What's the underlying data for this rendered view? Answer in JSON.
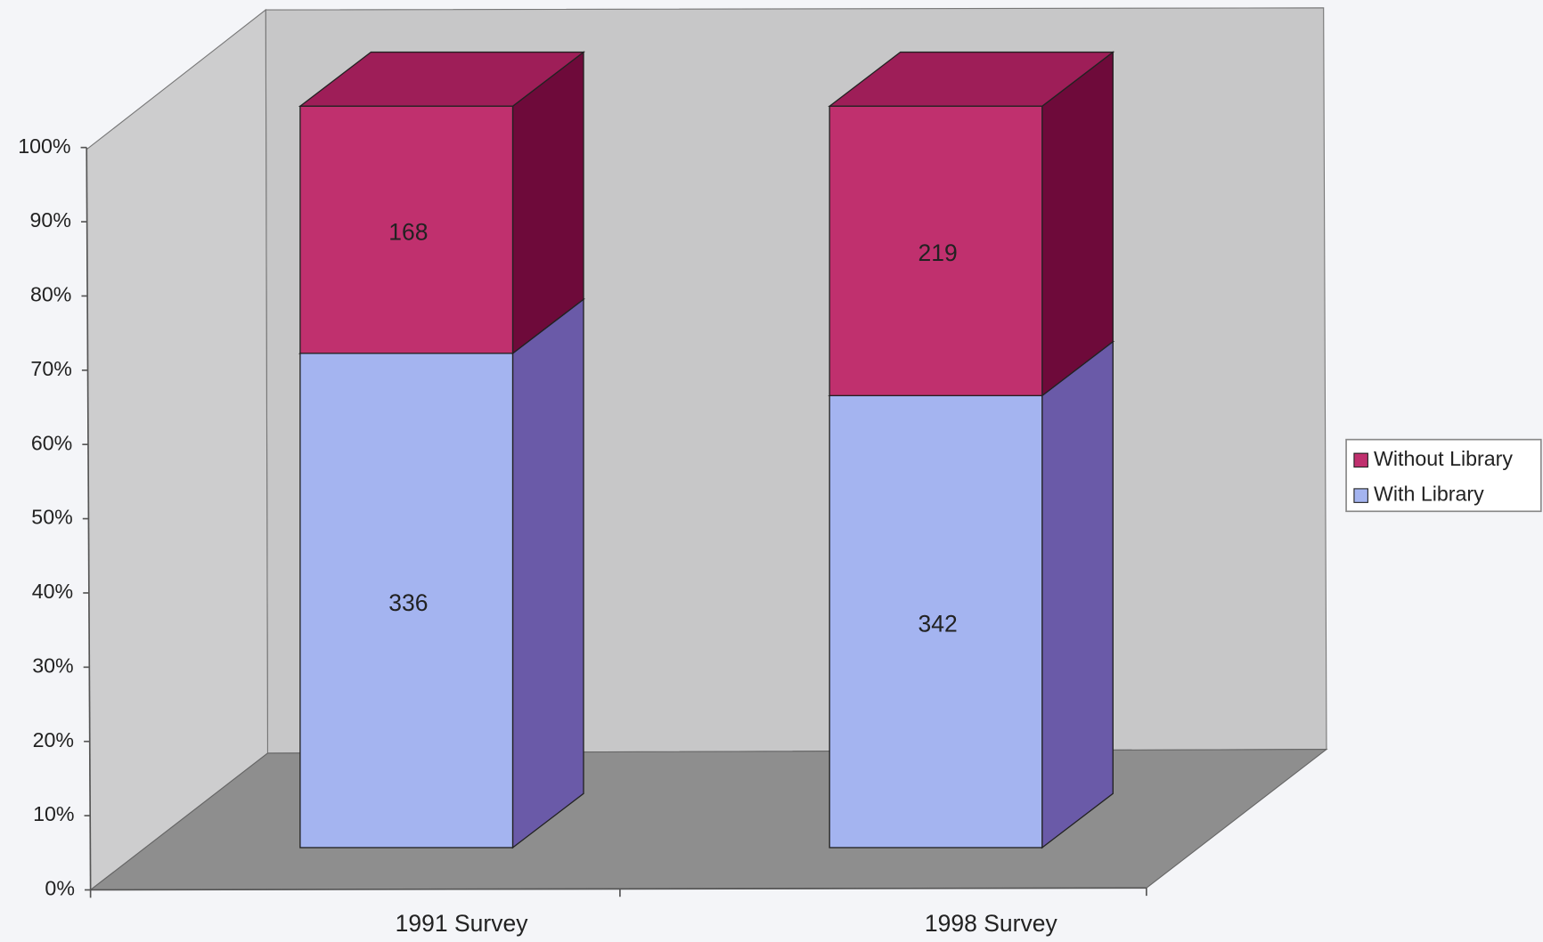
{
  "chart_data": {
    "type": "bar",
    "stacking": "percent",
    "categories": [
      "1991 Survey",
      "1998 Survey"
    ],
    "series": [
      {
        "name": "With Library",
        "color": "#a4b4f0",
        "side_color": "#6a5aa8",
        "top_color": "#8a90d8",
        "values": [
          336,
          342
        ]
      },
      {
        "name": "Without Library",
        "color": "#c0306e",
        "side_color": "#6e0a3a",
        "top_color": "#9e1e58",
        "values": [
          168,
          219
        ]
      }
    ],
    "ylim": [
      0,
      100
    ],
    "yticks": [
      {
        "value": 0,
        "label": "0%"
      },
      {
        "value": 10,
        "label": "10%"
      },
      {
        "value": 20,
        "label": "20%"
      },
      {
        "value": 30,
        "label": "30%"
      },
      {
        "value": 40,
        "label": "40%"
      },
      {
        "value": 50,
        "label": "50%"
      },
      {
        "value": 60,
        "label": "60%"
      },
      {
        "value": 70,
        "label": "70%"
      },
      {
        "value": 80,
        "label": "80%"
      },
      {
        "value": 90,
        "label": "90%"
      },
      {
        "value": 100,
        "label": "100%"
      }
    ],
    "legend": "right"
  }
}
